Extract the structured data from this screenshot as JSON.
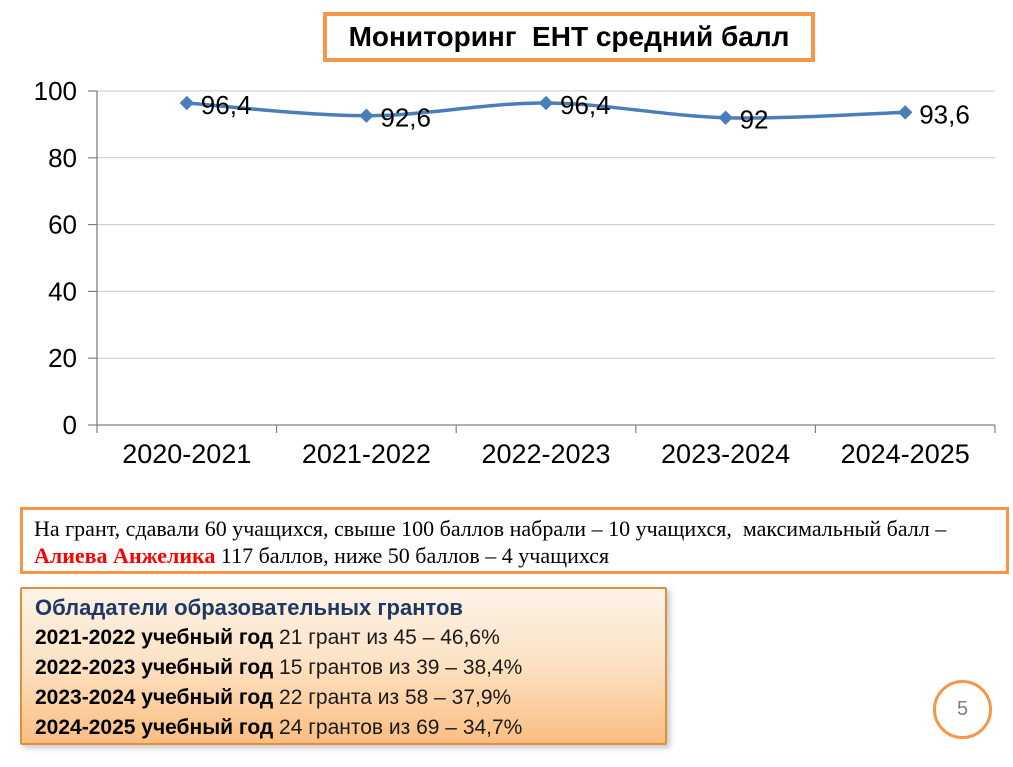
{
  "slide": {
    "title": "Мониторинг  ЕНТ средний балл",
    "page_number": "5"
  },
  "chart_data": {
    "type": "line",
    "title": "Мониторинг ЕНТ средний балл",
    "categories": [
      "2020-2021",
      "2021-2022",
      "2022-2023",
      "2023-2024",
      "2024-2025"
    ],
    "series": [
      {
        "name": "ЕНТ средний балл",
        "values": [
          96.4,
          92.6,
          96.4,
          92,
          93.6
        ]
      }
    ],
    "point_labels": [
      "96,4",
      "92,6",
      "96,4",
      "92",
      "93,6"
    ],
    "xlabel": "",
    "ylabel": "",
    "ylim": [
      0,
      100
    ],
    "yticks": [
      0,
      20,
      40,
      60,
      80,
      100
    ],
    "grid": true,
    "legend": "none",
    "marker": "diamond",
    "line_color": "#4A7EBB"
  },
  "note_box": {
    "line1": "На грант, сдавали 60 учащихся, свыше 100 баллов набрали – 10 учащихся,  максимальный балл –",
    "line2_name": "Алиева Анжелика",
    "line2_rest": " 117 баллов, ниже 50 баллов – 4 учащихся"
  },
  "grants_box": {
    "header": "Обладатели образовательных грантов",
    "rows": [
      {
        "year": "2021-2022 учебный год",
        "text": " 21 грант из 45 – 46,6%"
      },
      {
        "year": "2022-2023 учебный год",
        "text": " 15 грантов из 39 – 38,4%"
      },
      {
        "year": "2023-2024 учебный год",
        "text": " 22 гранта из 58 – 37,9%"
      },
      {
        "year": "2024-2025 учебный год",
        "text": " 24 грантов из 69 – 34,7%"
      }
    ]
  },
  "colors": {
    "accent_orange": "#F79646",
    "grants_border": "#DE913C",
    "line_blue": "#4A7EBB",
    "header_navy": "#1F3864",
    "name_red": "#FF0000",
    "gridline_gray": "#C8C8C8",
    "axis_gray": "#808080",
    "page_number_gray": "#7F7F7F",
    "gradient_top": "#FDF3E8",
    "gradient_bottom": "#FBBE81"
  }
}
